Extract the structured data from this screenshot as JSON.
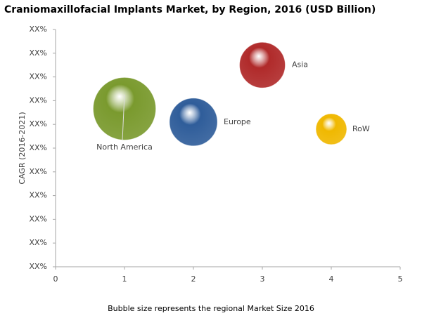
{
  "chart_data": {
    "type": "bubble",
    "title": "Craniomaxillofacial Implants Market, by Region, 2016 (USD Billion)",
    "y_label": "CAGR (2016-2021)",
    "note": "Bubble size represents the regional Market Size 2016",
    "xlim": [
      0,
      5
    ],
    "xticks": [
      0,
      1,
      2,
      3,
      4,
      5
    ],
    "ylim": [
      0,
      10
    ],
    "yticks": [
      {
        "value": 0,
        "label": "XX%"
      },
      {
        "value": 1,
        "label": "XX%"
      },
      {
        "value": 2,
        "label": "XX%"
      },
      {
        "value": 3,
        "label": "XX%"
      },
      {
        "value": 4,
        "label": "XX%"
      },
      {
        "value": 5,
        "label": "XX%"
      },
      {
        "value": 6,
        "label": "XX%"
      },
      {
        "value": 7,
        "label": "XX%"
      },
      {
        "value": 8,
        "label": "XX%"
      },
      {
        "value": 9,
        "label": "XX%"
      },
      {
        "value": 10,
        "label": "XX%"
      }
    ],
    "grid": false,
    "series": [
      {
        "name": "North America",
        "color": "#7a9a2e",
        "x": 1,
        "y": 6.66,
        "size": 1.9
      },
      {
        "name": "Europe",
        "color": "#2f5d9a",
        "x": 2,
        "y": 6.1,
        "size": 1.1
      },
      {
        "name": "Asia",
        "color": "#b02a2a",
        "x": 3,
        "y": 8.5,
        "size": 1.0
      },
      {
        "name": "RoW",
        "color": "#f0b800",
        "x": 4,
        "y": 5.8,
        "size": 0.45
      }
    ]
  }
}
